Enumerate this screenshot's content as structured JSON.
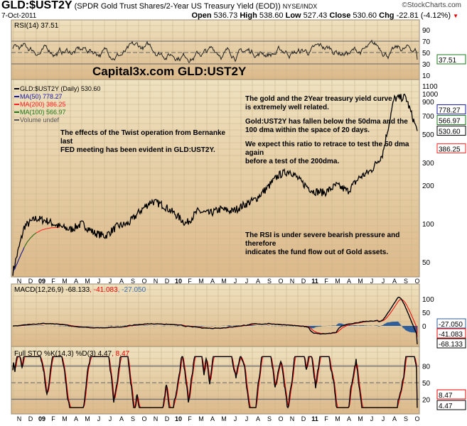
{
  "header": {
    "symbol": "GLD:$UST2Y",
    "description": "(SPDR Gold Trust Shares/2-Year US Treasury Yield (EOD))",
    "exchange": "NYSE/INDX",
    "watermark": "©StockCharts.com",
    "date": "7-Oct-2011",
    "open_label": "Open",
    "open": "536.73",
    "high_label": "High",
    "high": "538.60",
    "low_label": "Low",
    "low": "527.43",
    "close_label": "Close",
    "close": "530.60",
    "chg_label": "Chg",
    "chg": "-22.81 (-4.12%)"
  },
  "colors": {
    "price": "#000000",
    "price_up": "#cc0000",
    "ma50": "#1a1aa8",
    "ma200": "#ff2020",
    "ma100": "#1a7a1a",
    "macd_hist": "#2e5f9a",
    "panel_bg": "#e9d4a8",
    "grid": "#c9b48c"
  },
  "chart_data": [
    {
      "type": "line",
      "title": "Capital3x.com GLD:UST2Y",
      "scale": "log",
      "legend": [
        "GLD:$UST2Y (Daily) 530.60",
        "MA(50) 778.27",
        "MA(200) 386.25",
        "MA(100) 566.97",
        "Volume undef"
      ],
      "x_ticks": [
        "N",
        "D",
        "09",
        "F",
        "M",
        "A",
        "M",
        "J",
        "J",
        "A",
        "S",
        "O",
        "N",
        "D",
        "10",
        "F",
        "M",
        "A",
        "M",
        "J",
        "J",
        "A",
        "S",
        "O",
        "N",
        "D",
        "11",
        "F",
        "M",
        "A",
        "M",
        "J",
        "J",
        "A",
        "S",
        "O"
      ],
      "y_ticks": [
        "1100",
        "1000",
        "900",
        "700",
        "500",
        "300",
        "200",
        "100",
        "50"
      ],
      "ylim": [
        40,
        1150
      ],
      "price_monthly": [
        42,
        95,
        110,
        105,
        95,
        90,
        100,
        85,
        80,
        95,
        100,
        125,
        150,
        140,
        120,
        100,
        125,
        120,
        130,
        125,
        140,
        155,
        190,
        240,
        260,
        210,
        180,
        175,
        200,
        180,
        230,
        260,
        350,
        950,
        980,
        530.6
      ],
      "last_values": {
        "price": "530.60",
        "ma50": "778.27",
        "ma100": "566.97",
        "ma200": "386.25"
      },
      "annotations": [
        "The effects of the Twist operation from Bernanke last",
        "FED meeting has been evident in GLD:UST2Y.",
        "The gold and the 2Year treasury yield curve",
        "is extremely well related.",
        "Gold:UST2Y has fallen below the 50dma and the",
        "100 dma within the space of 20 days.",
        "We expect this ratio to retrace to test the 50 dma again",
        "before a test of the 200dma.",
        "The RSI is under severe bearish pressure and therefore",
        "indicates the fund flow out of Gold assets."
      ]
    },
    {
      "type": "line",
      "title": "RSI(14) 37.51",
      "y_ticks": [
        "90",
        "70",
        "50",
        "30",
        "10"
      ],
      "ylim": [
        0,
        100
      ],
      "last": "37.51"
    },
    {
      "type": "line",
      "title": "MACD(12,26,9)",
      "values": {
        "macd": "-68.133",
        "signal": "-41.083",
        "hist": "-27.050"
      },
      "y_ticks": [
        "100",
        "50",
        "0"
      ],
      "last_labels": [
        "-27.050",
        "-41.083",
        "-68.133"
      ]
    },
    {
      "type": "line",
      "title": "Full STO %K(14,3) %D(3)",
      "values": {
        "k": "4.47",
        "d": "8.47"
      },
      "y_ticks": [
        "80",
        "50",
        "20"
      ],
      "ylim": [
        0,
        100
      ],
      "last_labels": [
        "8.47",
        "4.47"
      ]
    }
  ]
}
